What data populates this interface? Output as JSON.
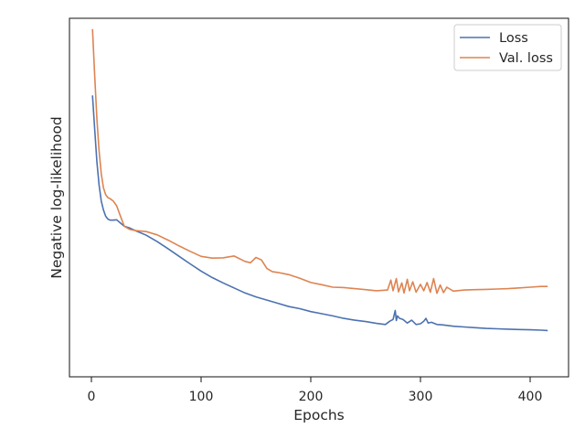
{
  "chart_data": {
    "type": "line",
    "title": "",
    "xlabel": "Epochs",
    "ylabel": "Negative log-likelihood",
    "xlim": [
      -20,
      435
    ],
    "ylim": [
      0.0,
      1.0
    ],
    "xticks": [
      0,
      100,
      200,
      300,
      400
    ],
    "yticks": [],
    "grid": false,
    "legend": {
      "position": "top-right",
      "entries": [
        "Loss",
        "Val. loss"
      ]
    },
    "series": [
      {
        "name": "Loss",
        "color": "#4c72b0",
        "x": [
          1,
          3,
          5,
          7,
          9,
          11,
          13,
          15,
          17,
          20,
          23,
          26,
          30,
          35,
          40,
          50,
          60,
          70,
          80,
          90,
          100,
          110,
          120,
          130,
          140,
          150,
          160,
          170,
          180,
          190,
          200,
          210,
          220,
          230,
          240,
          250,
          260,
          268,
          272,
          275,
          277,
          278,
          279,
          281,
          284,
          288,
          292,
          296,
          300,
          303,
          305,
          307,
          310,
          315,
          320,
          325,
          330,
          340,
          350,
          360,
          370,
          380,
          390,
          400,
          410,
          416
        ],
        "y": [
          0.785,
          0.69,
          0.6,
          0.535,
          0.49,
          0.465,
          0.448,
          0.44,
          0.437,
          0.437,
          0.438,
          0.43,
          0.42,
          0.415,
          0.408,
          0.395,
          0.377,
          0.357,
          0.336,
          0.315,
          0.295,
          0.277,
          0.262,
          0.248,
          0.234,
          0.223,
          0.214,
          0.205,
          0.196,
          0.19,
          0.182,
          0.176,
          0.17,
          0.163,
          0.158,
          0.154,
          0.149,
          0.146,
          0.155,
          0.16,
          0.185,
          0.157,
          0.17,
          0.163,
          0.16,
          0.15,
          0.158,
          0.146,
          0.148,
          0.155,
          0.163,
          0.15,
          0.152,
          0.146,
          0.145,
          0.143,
          0.141,
          0.139,
          0.137,
          0.135,
          0.134,
          0.133,
          0.132,
          0.131,
          0.13,
          0.129
        ]
      },
      {
        "name": "Val. loss",
        "color": "#dd8452",
        "x": [
          1,
          3,
          5,
          7,
          9,
          11,
          13,
          15,
          17,
          20,
          23,
          26,
          30,
          35,
          40,
          50,
          60,
          70,
          80,
          90,
          100,
          110,
          120,
          130,
          140,
          145,
          150,
          155,
          160,
          165,
          170,
          180,
          190,
          200,
          210,
          220,
          230,
          240,
          250,
          260,
          270,
          273,
          275,
          278,
          280,
          283,
          285,
          288,
          290,
          293,
          296,
          300,
          303,
          306,
          309,
          312,
          315,
          318,
          321,
          324,
          330,
          340,
          350,
          360,
          370,
          380,
          390,
          400,
          410,
          416
        ],
        "y": [
          0.97,
          0.84,
          0.72,
          0.63,
          0.566,
          0.527,
          0.508,
          0.5,
          0.497,
          0.49,
          0.477,
          0.452,
          0.42,
          0.411,
          0.408,
          0.405,
          0.396,
          0.381,
          0.365,
          0.35,
          0.336,
          0.331,
          0.332,
          0.337,
          0.322,
          0.318,
          0.333,
          0.326,
          0.302,
          0.293,
          0.291,
          0.285,
          0.275,
          0.263,
          0.257,
          0.25,
          0.249,
          0.246,
          0.243,
          0.24,
          0.242,
          0.27,
          0.24,
          0.274,
          0.237,
          0.262,
          0.234,
          0.272,
          0.24,
          0.265,
          0.236,
          0.258,
          0.24,
          0.263,
          0.236,
          0.274,
          0.233,
          0.256,
          0.235,
          0.25,
          0.239,
          0.242,
          0.243,
          0.244,
          0.245,
          0.246,
          0.248,
          0.25,
          0.252,
          0.252
        ]
      }
    ]
  }
}
